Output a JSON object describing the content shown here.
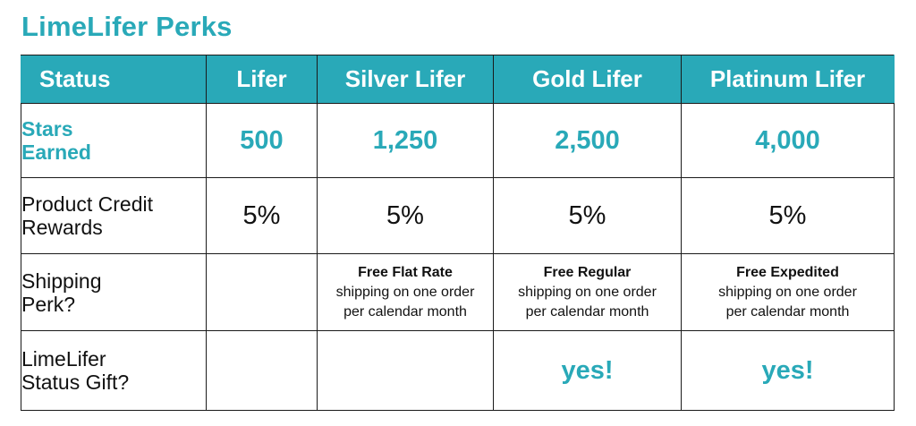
{
  "page": {
    "title": "LimeLifer Perks"
  },
  "colors": {
    "accent": "#29a9b8",
    "header_text": "#ffffff",
    "body_text": "#111111",
    "border": "#1a1a1a"
  },
  "table": {
    "header": {
      "status": "Status",
      "tiers": [
        "Lifer",
        "Silver Lifer",
        "Gold Lifer",
        "Platinum Lifer"
      ]
    },
    "rows": {
      "stars": {
        "label": "Stars\nEarned",
        "values": [
          "500",
          "1,250",
          "2,500",
          "4,000"
        ]
      },
      "credit": {
        "label": "Product Credit\nRewards",
        "values": [
          "5%",
          "5%",
          "5%",
          "5%"
        ]
      },
      "shipping": {
        "label": "Shipping\nPerk?",
        "values": [
          null,
          {
            "bold": "Free Flat Rate",
            "rest": "shipping on one order\nper calendar month"
          },
          {
            "bold": "Free Regular",
            "rest": "shipping on one order\nper calendar month"
          },
          {
            "bold": "Free Expedited",
            "rest": "shipping on one order\nper calendar month"
          }
        ]
      },
      "gift": {
        "label": "LimeLifer\nStatus Gift?",
        "values": [
          null,
          null,
          "yes!",
          "yes!"
        ]
      }
    }
  }
}
